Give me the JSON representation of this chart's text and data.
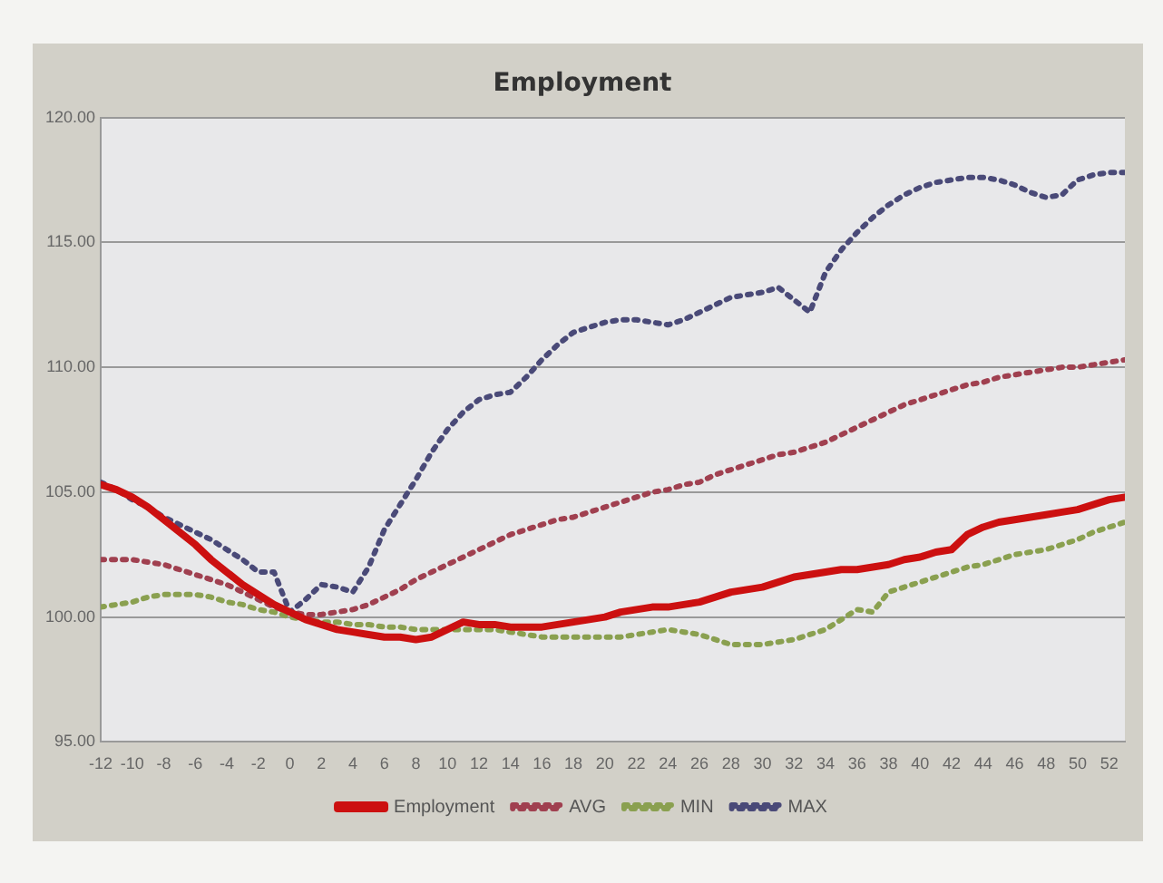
{
  "chart_data": {
    "type": "line",
    "title": "Employment",
    "x": [
      -12,
      -11,
      -10,
      -9,
      -8,
      -7,
      -6,
      -5,
      -4,
      -3,
      -2,
      -1,
      0,
      1,
      2,
      3,
      4,
      5,
      6,
      7,
      8,
      9,
      10,
      11,
      12,
      13,
      14,
      15,
      16,
      17,
      18,
      19,
      20,
      21,
      22,
      23,
      24,
      25,
      26,
      27,
      28,
      29,
      30,
      31,
      32,
      33,
      34,
      35,
      36,
      37,
      38,
      39,
      40,
      41,
      42,
      43,
      44,
      45,
      46,
      47,
      48,
      49,
      50,
      51,
      52,
      53
    ],
    "xlim": [
      -12,
      53
    ],
    "xticks": [
      -12,
      -10,
      -8,
      -6,
      -4,
      -2,
      0,
      2,
      4,
      6,
      8,
      10,
      12,
      14,
      16,
      18,
      20,
      22,
      24,
      26,
      28,
      30,
      32,
      34,
      36,
      38,
      40,
      42,
      44,
      46,
      48,
      50,
      52
    ],
    "series": [
      {
        "name": "Employment",
        "color": "#cc1010",
        "line_style": "solid",
        "values": [
          105.3,
          105.1,
          104.8,
          104.4,
          103.9,
          103.4,
          102.9,
          102.3,
          101.8,
          101.3,
          100.9,
          100.5,
          100.2,
          99.9,
          99.7,
          99.5,
          99.4,
          99.3,
          99.2,
          99.2,
          99.1,
          99.2,
          99.5,
          99.8,
          99.7,
          99.7,
          99.6,
          99.6,
          99.6,
          99.7,
          99.8,
          99.9,
          100.0,
          100.2,
          100.3,
          100.4,
          100.4,
          100.5,
          100.6,
          100.8,
          101.0,
          101.1,
          101.2,
          101.4,
          101.6,
          101.7,
          101.8,
          101.9,
          101.9,
          102.0,
          102.1,
          102.3,
          102.4,
          102.6,
          102.7,
          103.3,
          103.6,
          103.8,
          103.9,
          104.0,
          104.1,
          104.2,
          104.3,
          104.5,
          104.7,
          104.8
        ]
      },
      {
        "name": "AVG",
        "color": "#a04050",
        "line_style": "dotted",
        "values": [
          102.3,
          102.3,
          102.3,
          102.2,
          102.1,
          101.9,
          101.7,
          101.5,
          101.3,
          101.0,
          100.7,
          100.4,
          100.2,
          100.1,
          100.1,
          100.2,
          100.3,
          100.5,
          100.8,
          101.1,
          101.5,
          101.8,
          102.1,
          102.4,
          102.7,
          103.0,
          103.3,
          103.5,
          103.7,
          103.9,
          104.0,
          104.2,
          104.4,
          104.6,
          104.8,
          105.0,
          105.1,
          105.3,
          105.4,
          105.7,
          105.9,
          106.1,
          106.3,
          106.5,
          106.6,
          106.8,
          107.0,
          107.3,
          107.6,
          107.9,
          108.2,
          108.5,
          108.7,
          108.9,
          109.1,
          109.3,
          109.4,
          109.6,
          109.7,
          109.8,
          109.9,
          110.0,
          110.0,
          110.1,
          110.2,
          110.3
        ]
      },
      {
        "name": "MIN",
        "color": "#8aa050",
        "line_style": "dotted",
        "values": [
          100.4,
          100.5,
          100.6,
          100.8,
          100.9,
          100.9,
          100.9,
          100.8,
          100.6,
          100.5,
          100.3,
          100.2,
          100.0,
          99.9,
          99.8,
          99.8,
          99.7,
          99.7,
          99.6,
          99.6,
          99.5,
          99.5,
          99.5,
          99.5,
          99.5,
          99.5,
          99.4,
          99.3,
          99.2,
          99.2,
          99.2,
          99.2,
          99.2,
          99.2,
          99.3,
          99.4,
          99.5,
          99.4,
          99.3,
          99.1,
          98.9,
          98.9,
          98.9,
          99.0,
          99.1,
          99.3,
          99.5,
          99.9,
          100.3,
          100.2,
          101.0,
          101.2,
          101.4,
          101.6,
          101.8,
          102.0,
          102.1,
          102.3,
          102.5,
          102.6,
          102.7,
          102.9,
          103.1,
          103.4,
          103.6,
          103.8
        ]
      },
      {
        "name": "MAX",
        "color": "#4a4a78",
        "line_style": "dotted",
        "values": [
          105.4,
          105.1,
          104.7,
          104.4,
          104.0,
          103.7,
          103.4,
          103.1,
          102.7,
          102.3,
          101.8,
          101.8,
          100.2,
          100.7,
          101.3,
          101.2,
          101.0,
          102.0,
          103.5,
          104.5,
          105.5,
          106.6,
          107.5,
          108.2,
          108.7,
          108.9,
          109.0,
          109.6,
          110.3,
          110.9,
          111.4,
          111.6,
          111.8,
          111.9,
          111.9,
          111.8,
          111.7,
          111.9,
          112.2,
          112.5,
          112.8,
          112.9,
          113.0,
          113.2,
          112.7,
          112.2,
          113.8,
          114.7,
          115.4,
          116.0,
          116.5,
          116.9,
          117.2,
          117.4,
          117.5,
          117.6,
          117.6,
          117.5,
          117.3,
          117.0,
          116.8,
          116.9,
          117.5,
          117.7,
          117.8,
          117.8
        ]
      }
    ],
    "ylim": [
      95,
      120
    ],
    "yticks": [
      {
        "value": 95,
        "label": "95.00"
      },
      {
        "value": 100,
        "label": "100.00"
      },
      {
        "value": 105,
        "label": "105.00"
      },
      {
        "value": 110,
        "label": "110.00"
      },
      {
        "value": 115,
        "label": "115.00"
      },
      {
        "value": 120,
        "label": "120.00"
      }
    ],
    "grid": "y",
    "legend": "bottom"
  }
}
